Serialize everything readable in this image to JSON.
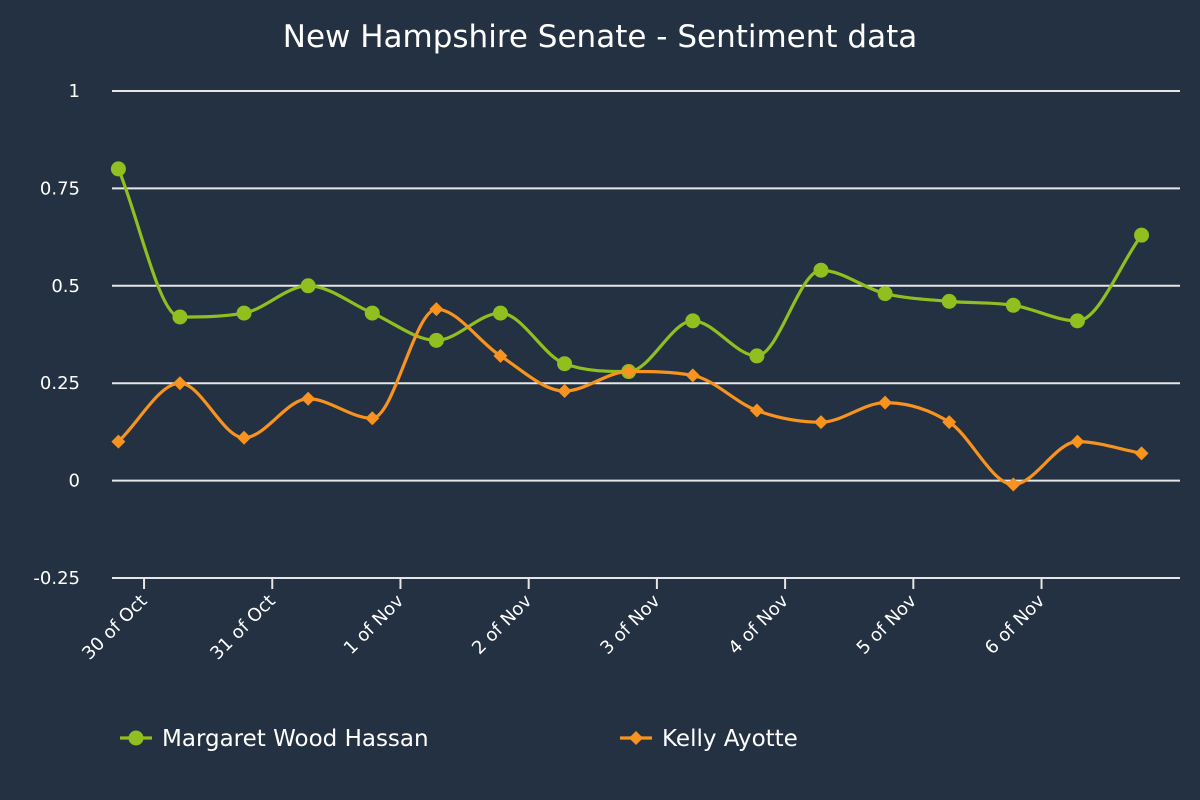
{
  "chart_data": {
    "type": "line",
    "title": "New Hampshire Senate - Sentiment data",
    "xlabel": "",
    "ylabel": "",
    "ylim": [
      -0.25,
      1
    ],
    "yticks": [
      {
        "value": 1,
        "label": "1"
      },
      {
        "value": 0.75,
        "label": "0.75"
      },
      {
        "value": 0.5,
        "label": "0.5"
      },
      {
        "value": 0.25,
        "label": "0.25"
      },
      {
        "value": 0,
        "label": "0"
      },
      {
        "value": -0.25,
        "label": "-0.25"
      }
    ],
    "x_days": [
      0,
      0.5,
      1,
      1.5,
      2,
      2.5,
      3,
      3.5,
      4,
      4.5,
      5,
      5.5,
      6,
      6.5,
      7,
      7.5,
      8
    ],
    "xlim": [
      -0.25,
      8.08
    ],
    "xticks": [
      {
        "value": 0,
        "label": "30 of Oct"
      },
      {
        "value": 1,
        "label": "31 of Oct"
      },
      {
        "value": 2,
        "label": "1 of Nov"
      },
      {
        "value": 3,
        "label": "2 of Nov"
      },
      {
        "value": 4,
        "label": "3 of Nov"
      },
      {
        "value": 5,
        "label": "4 of Nov"
      },
      {
        "value": 6,
        "label": "5 of Nov"
      },
      {
        "value": 7,
        "label": "6 of Nov"
      }
    ],
    "series": [
      {
        "name": "Margaret Wood Hassan",
        "color": "#90bf1f",
        "marker": "circle",
        "x": [
          -0.2,
          0.28,
          0.78,
          1.28,
          1.78,
          2.28,
          2.78,
          3.28,
          3.78,
          4.28,
          4.78,
          5.28,
          5.78,
          6.28,
          6.78,
          7.28,
          7.78
        ],
        "values": [
          0.8,
          0.42,
          0.43,
          0.5,
          0.43,
          0.36,
          0.43,
          0.3,
          0.28,
          0.41,
          0.32,
          0.54,
          0.48,
          0.46,
          0.45,
          0.41,
          0.63
        ]
      },
      {
        "name": "Kelly Ayotte",
        "color": "#f7931e",
        "marker": "diamond",
        "x": [
          -0.2,
          0.28,
          0.78,
          1.28,
          1.78,
          2.28,
          2.78,
          3.28,
          3.78,
          4.28,
          4.78,
          5.28,
          5.78,
          6.28,
          6.78,
          7.28,
          7.78
        ],
        "values": [
          0.1,
          0.25,
          0.11,
          0.21,
          0.16,
          0.44,
          0.32,
          0.23,
          0.28,
          0.27,
          0.18,
          0.15,
          0.2,
          0.15,
          -0.01,
          0.1,
          0.07
        ]
      }
    ]
  }
}
